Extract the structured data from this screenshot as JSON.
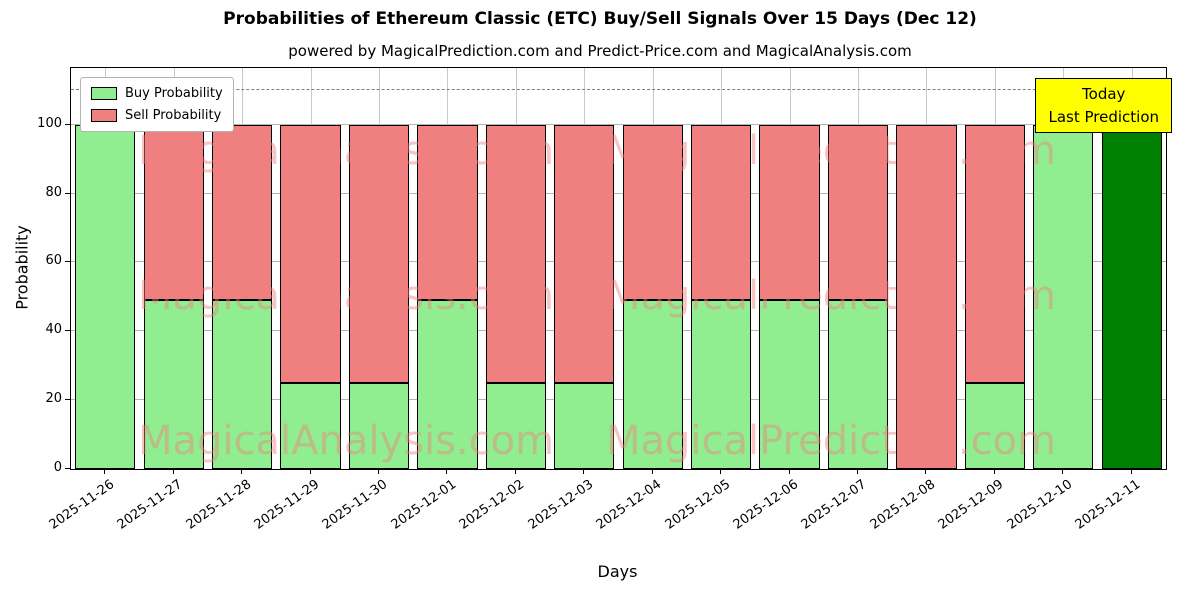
{
  "title": "Probabilities of Ethereum Classic (ETC) Buy/Sell Signals Over 15 Days (Dec 12)",
  "subtitle": "powered by MagicalPrediction.com and Predict-Price.com and MagicalAnalysis.com",
  "axes": {
    "xlabel": "Days",
    "ylabel": "Probability",
    "yticks": [
      0,
      20,
      40,
      60,
      80,
      100
    ]
  },
  "annotation": {
    "line1": "Today",
    "line2": "Last Prediction",
    "bg": "#ffff00"
  },
  "watermarks": {
    "left": "MagicalAnalysis.com",
    "right": "MagicalPrediction.com"
  },
  "colors": {
    "buy": "#90ee90",
    "sell": "#f08080",
    "today_bar": "#008000",
    "watermark": "#f08080",
    "grid": "#b5b5b5",
    "dashed_line": "#7f7f7f",
    "annotation_bg": "#ffff00"
  },
  "chart_data": {
    "type": "bar",
    "stacked": true,
    "title": "Probabilities of Ethereum Classic (ETC) Buy/Sell Signals Over 15 Days (Dec 12)",
    "xlabel": "Days",
    "ylabel": "Probability",
    "categories": [
      "2025-11-26",
      "2025-11-27",
      "2025-11-28",
      "2025-11-29",
      "2025-11-30",
      "2025-12-01",
      "2025-12-02",
      "2025-12-03",
      "2025-12-04",
      "2025-12-05",
      "2025-12-06",
      "2025-12-07",
      "2025-12-08",
      "2025-12-09",
      "2025-12-10",
      "2025-12-11"
    ],
    "series": [
      {
        "name": "Buy Probability",
        "color": "#90ee90",
        "values": [
          100,
          49,
          49,
          25,
          25,
          49,
          25,
          25,
          49,
          49,
          49,
          49,
          0,
          25,
          100,
          100
        ]
      },
      {
        "name": "Sell Probability",
        "color": "#f08080",
        "values": [
          0,
          51,
          51,
          75,
          75,
          51,
          75,
          75,
          51,
          51,
          51,
          51,
          100,
          75,
          0,
          0
        ]
      }
    ],
    "today": {
      "index": 15,
      "color": "#008000",
      "note": "Today / Last Prediction bar shown in dark green"
    },
    "ylim": [
      0,
      116.5
    ],
    "dashed_line_y": 110,
    "grid": "on",
    "legend_position": "upper left"
  }
}
